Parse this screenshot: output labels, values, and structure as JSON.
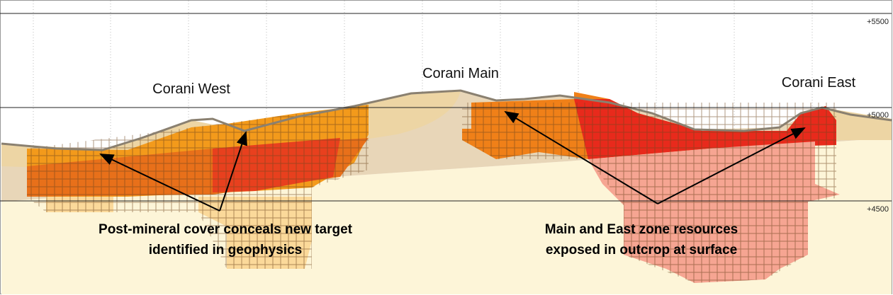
{
  "section_labels": [
    "Corani West",
    "Corani Main",
    "Corani East"
  ],
  "elevation_labels": [
    "+5500",
    "+5000",
    "+4500"
  ],
  "annotations": [
    {
      "lines": [
        "Post-mineral cover conceals new target",
        "identified in geophysics"
      ]
    },
    {
      "lines": [
        "Main and East zone resources",
        "exposed in outcrop at surface"
      ]
    }
  ]
}
